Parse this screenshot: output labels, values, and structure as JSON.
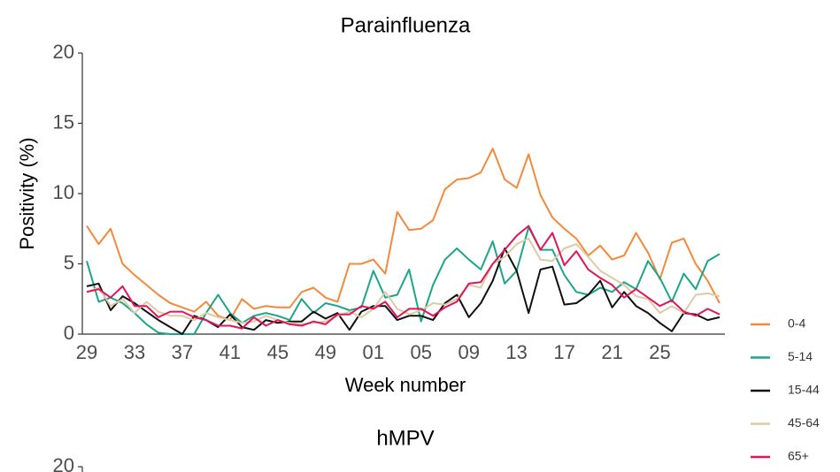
{
  "chart_data": [
    {
      "type": "line",
      "title": "Parainfluenza",
      "x_label": "Week number",
      "y_label": "Positivity (%)",
      "categories": [
        "29",
        null,
        null,
        null,
        "33",
        null,
        null,
        null,
        "37",
        null,
        null,
        null,
        "41",
        null,
        null,
        null,
        "45",
        null,
        null,
        null,
        "49",
        null,
        null,
        null,
        "01",
        null,
        null,
        null,
        "05",
        null,
        null,
        null,
        "09",
        null,
        null,
        null,
        "13",
        null,
        null,
        null,
        "17",
        null,
        null,
        null,
        "21",
        null,
        null,
        null,
        "25",
        null,
        null,
        null,
        null,
        null
      ],
      "ylim": [
        0,
        20
      ],
      "yticks": [
        0,
        5,
        10,
        15,
        20
      ],
      "grid": false,
      "legend": "right",
      "series": [
        {
          "name": "0-4",
          "color": "#f4893a",
          "values": [
            7.7,
            6.4,
            7.5,
            5.0,
            4.2,
            3.5,
            2.8,
            2.2,
            1.9,
            1.6,
            2.3,
            1.3,
            1.0,
            2.5,
            1.8,
            2.0,
            1.9,
            1.9,
            3.0,
            3.3,
            2.6,
            2.3,
            5.0,
            5.0,
            5.3,
            4.3,
            8.7,
            7.4,
            7.5,
            8.1,
            10.3,
            11.0,
            11.1,
            11.5,
            13.2,
            11.0,
            10.4,
            12.8,
            9.9,
            8.3,
            7.5,
            6.8,
            5.6,
            6.3,
            5.3,
            5.6,
            7.2,
            5.8,
            3.9,
            6.5,
            6.8,
            5.0,
            3.8,
            2.2
          ]
        },
        {
          "name": "5-14",
          "color": "#1aa687",
          "values": [
            5.2,
            2.3,
            2.6,
            2.2,
            1.5,
            0.7,
            0.1,
            0,
            0,
            0,
            1.5,
            2.8,
            1.5,
            0.8,
            1.3,
            1.5,
            1.3,
            1.0,
            2.5,
            1.5,
            2.2,
            2.0,
            1.7,
            1.9,
            4.5,
            2.6,
            2.8,
            4.6,
            0.9,
            3.5,
            5.3,
            6.1,
            5.3,
            4.6,
            6.6,
            3.6,
            4.5,
            7.6,
            6.0,
            6.0,
            4.2,
            3.0,
            2.8,
            3.3,
            3.0,
            3.7,
            3.2,
            5.2,
            4.0,
            2.3,
            4.3,
            3.2,
            5.2,
            5.7
          ]
        },
        {
          "name": "15-44",
          "color": "#111111",
          "values": [
            3.4,
            3.6,
            1.7,
            2.7,
            2.2,
            1.6,
            1.0,
            0.5,
            0,
            1.3,
            1.0,
            0.5,
            1.4,
            0.5,
            0.3,
            1.0,
            0.8,
            0.9,
            0.9,
            1.6,
            1.1,
            1.5,
            0.3,
            1.6,
            2.0,
            2.0,
            1.0,
            1.3,
            1.3,
            1.0,
            2.2,
            2.8,
            1.2,
            2.2,
            3.8,
            6.1,
            4.5,
            1.5,
            4.6,
            4.8,
            2.1,
            2.2,
            2.8,
            3.8,
            1.9,
            3.0,
            2.0,
            1.5,
            0.8,
            0.2,
            1.5,
            1.4,
            1.0,
            1.2
          ]
        },
        {
          "name": "45-64",
          "color": "#dccba4",
          "values": [
            3.0,
            3.3,
            2.0,
            2.5,
            1.5,
            2.3,
            1.6,
            1.3,
            1.3,
            1.0,
            1.5,
            1.2,
            1.0,
            0.8,
            0.9,
            1.3,
            1.0,
            0.8,
            0.7,
            0.8,
            0.9,
            1.3,
            1.6,
            1.2,
            1.8,
            3.0,
            1.8,
            1.4,
            1.7,
            2.2,
            2.1,
            2.5,
            3.5,
            3.3,
            5.0,
            5.5,
            6.4,
            6.8,
            5.3,
            5.2,
            6.1,
            6.4,
            5.5,
            4.5,
            4.0,
            3.5,
            2.7,
            2.5,
            1.5,
            2.0,
            1.5,
            2.8,
            2.9,
            2.7
          ]
        },
        {
          "name": "65+",
          "color": "#e0155a",
          "values": [
            3.0,
            3.2,
            2.6,
            3.4,
            2.0,
            2.0,
            1.2,
            1.6,
            1.6,
            1.2,
            1.0,
            0.6,
            0.6,
            0.4,
            1.2,
            0.6,
            1.0,
            0.7,
            0.6,
            0.9,
            0.7,
            1.4,
            1.4,
            2.0,
            1.8,
            2.3,
            1.2,
            1.8,
            1.8,
            1.3,
            1.9,
            2.3,
            3.6,
            3.7,
            5.0,
            6.0,
            7.0,
            7.7,
            6.0,
            7.2,
            4.9,
            5.9,
            4.6,
            4.0,
            3.5,
            2.6,
            3.2,
            2.6,
            2.0,
            2.4,
            1.6,
            1.3,
            1.8,
            1.4
          ]
        }
      ]
    },
    {
      "type": "line",
      "title": "hMPV",
      "ylim": [
        0,
        20
      ],
      "yticks": [
        20
      ]
    }
  ]
}
